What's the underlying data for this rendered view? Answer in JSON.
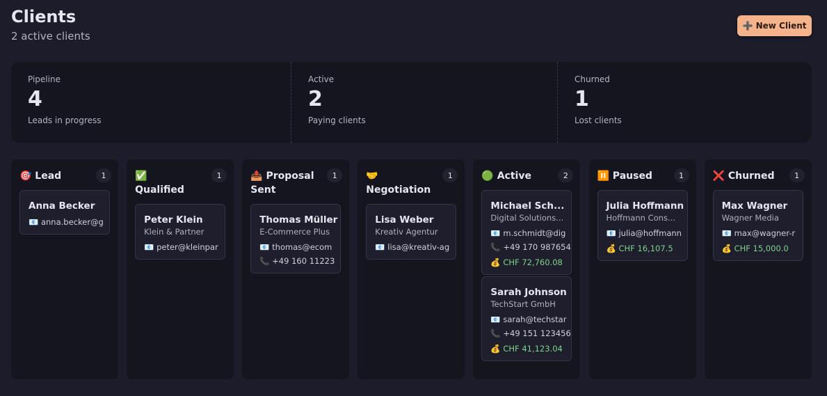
{
  "header": {
    "title": "Clients",
    "subtitle": "2 active clients",
    "button": "➕ New Client"
  },
  "stats": [
    {
      "label": "Pipeline",
      "value": 4,
      "note": "Leads in progress"
    },
    {
      "label": "Active",
      "value": 2,
      "note": "Paying clients"
    },
    {
      "label": "Churned",
      "value": 1,
      "note": "Lost clients"
    }
  ],
  "columns": [
    {
      "title": "🎯 Lead",
      "count": 1,
      "cards": [
        {
          "name": "Anna Becker",
          "email": "📧 anna.becker@g"
        }
      ]
    },
    {
      "title": "✅ Qualified",
      "count": 1,
      "cards": [
        {
          "name": "Peter Klein",
          "company": "Klein & Partner",
          "email": "📧 peter@kleinpar"
        }
      ]
    },
    {
      "title": "📤 Proposal Sent",
      "count": 1,
      "cards": [
        {
          "name": "Thomas Müller",
          "company": "E-Commerce Plus",
          "email": "📧 thomas@ecom",
          "phone": "📞 +49 160 11223"
        }
      ]
    },
    {
      "title": "🤝 Negotiation",
      "count": 1,
      "cards": [
        {
          "name": "Lisa Weber",
          "company": "Kreativ Agentur",
          "email": "📧 lisa@kreativ-ag"
        }
      ]
    },
    {
      "title": "🟢 Active",
      "count": 2,
      "cards": [
        {
          "name": "Michael Sch...",
          "company": "Digital Solutions...",
          "email": "📧 m.schmidt@dig",
          "phone": "📞 +49 170 987654",
          "amount": "💰 CHF 72,760.08"
        },
        {
          "name": "Sarah Johnson",
          "company": "TechStart GmbH",
          "email": "📧 sarah@techstar",
          "phone": "📞 +49 151 123456",
          "amount": "💰 CHF 41,123.04"
        }
      ]
    },
    {
      "title": "⏸️ Paused",
      "count": 1,
      "cards": [
        {
          "name": "Julia Hoffmann",
          "company": "Hoffmann Cons...",
          "email": "📧 julia@hoffmann",
          "amount": "💰 CHF 16,107.5"
        }
      ]
    },
    {
      "title": "❌ Churned",
      "count": 1,
      "cards": [
        {
          "name": "Max Wagner",
          "company": "Wagner Media",
          "email": "📧 max@wagner-r",
          "amount": "💰 CHF 15,000.0"
        }
      ]
    }
  ]
}
